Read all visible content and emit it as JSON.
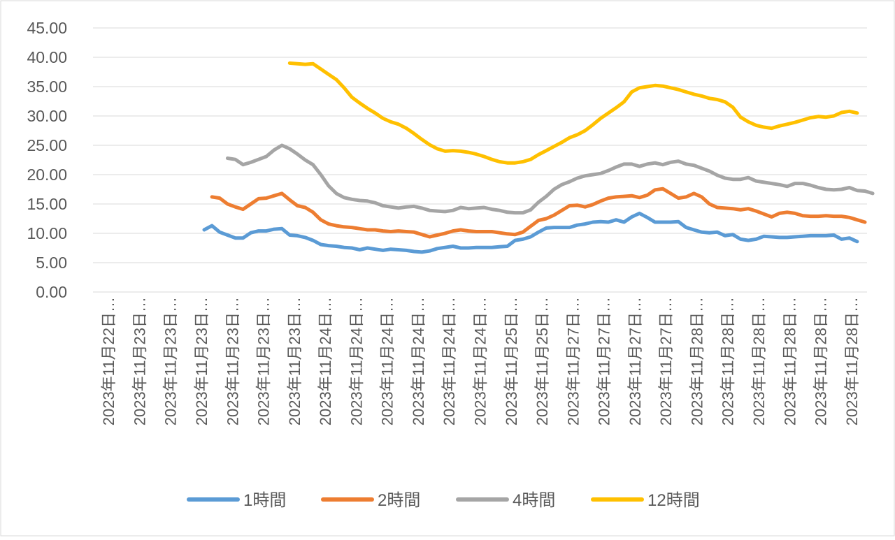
{
  "chart_data": {
    "type": "line",
    "title": "",
    "xlabel": "",
    "ylabel": "",
    "ylim": [
      0,
      45
    ],
    "yticks": [
      "0.00",
      "5.00",
      "10.00",
      "15.00",
      "20.00",
      "25.00",
      "30.00",
      "35.00",
      "40.00",
      "45.00"
    ],
    "x_tick_labels": [
      "2023年11月22日…",
      "2023年11月23日…",
      "2023年11月23日…",
      "2023年11月23日…",
      "2023年11月23日…",
      "2023年11月23日…",
      "2023年11月23日…",
      "2023年11月24日…",
      "2023年11月24日…",
      "2023年11月24日…",
      "2023年11月24日…",
      "2023年11月24日…",
      "2023年11月24日…",
      "2023年11月25日…",
      "2023年11月25日…",
      "2023年11月27日…",
      "2023年11月27日…",
      "2023年11月27日…",
      "2023年11月27日…",
      "2023年11月28日…",
      "2023年11月28日…",
      "2023年11月28日…",
      "2023年11月28日…",
      "2023年11月28日…",
      "2023年11月28日…"
    ],
    "grid": true,
    "legend_position": "bottom",
    "series": [
      {
        "name": "1時間",
        "color": "#5B9BD5",
        "start_index": 0,
        "values": [
          10.6,
          11.3,
          10.2,
          9.7,
          9.2,
          9.2,
          10.1,
          10.4,
          10.4,
          10.7,
          10.8,
          9.7,
          9.6,
          9.3,
          8.8,
          8.1,
          7.9,
          7.8,
          7.6,
          7.5,
          7.2,
          7.5,
          7.3,
          7.1,
          7.3,
          7.2,
          7.1,
          6.9,
          6.8,
          7.0,
          7.4,
          7.6,
          7.8,
          7.5,
          7.5,
          7.6,
          7.6,
          7.6,
          7.7,
          7.8,
          8.8,
          9.0,
          9.4,
          10.2,
          10.9,
          11.0,
          11.0,
          11.0,
          11.4,
          11.6,
          11.9,
          12.0,
          11.9,
          12.3,
          11.9,
          12.8,
          13.4,
          12.7,
          11.9,
          11.9,
          11.9,
          12.0,
          11.0,
          10.6,
          10.2,
          10.1,
          10.2,
          9.6,
          9.8,
          9.0,
          8.8,
          9.0,
          9.5,
          9.4,
          9.3,
          9.3,
          9.4,
          9.5,
          9.6,
          9.6,
          9.6,
          9.7,
          9.0,
          9.2,
          8.6
        ]
      },
      {
        "name": "2時間",
        "color": "#ED7D31",
        "start_index": 1,
        "values": [
          16.2,
          16.0,
          15.0,
          14.5,
          14.1,
          15.0,
          15.9,
          16.0,
          16.4,
          16.8,
          15.7,
          14.7,
          14.4,
          13.6,
          12.3,
          11.6,
          11.3,
          11.1,
          11.0,
          10.8,
          10.6,
          10.6,
          10.4,
          10.3,
          10.4,
          10.3,
          10.2,
          9.8,
          9.4,
          9.7,
          10.0,
          10.4,
          10.6,
          10.4,
          10.3,
          10.3,
          10.3,
          10.1,
          9.9,
          9.8,
          10.2,
          11.2,
          12.2,
          12.5,
          13.1,
          13.9,
          14.7,
          14.8,
          14.5,
          14.9,
          15.5,
          16.0,
          16.2,
          16.3,
          16.4,
          16.1,
          16.5,
          17.4,
          17.6,
          16.8,
          16.0,
          16.2,
          16.8,
          16.2,
          15.0,
          14.4,
          14.3,
          14.2,
          14.0,
          14.2,
          13.8,
          13.3,
          12.8,
          13.4,
          13.6,
          13.4,
          13.0,
          12.9,
          12.9,
          13.0,
          12.9,
          12.9,
          12.7,
          12.3,
          11.9
        ]
      },
      {
        "name": "4時間",
        "color": "#A5A5A5",
        "start_index": 3,
        "values": [
          22.8,
          22.6,
          21.7,
          22.1,
          22.6,
          23.1,
          24.2,
          25.0,
          24.4,
          23.5,
          22.5,
          21.7,
          20.0,
          18.1,
          16.8,
          16.1,
          15.8,
          15.6,
          15.5,
          15.2,
          14.7,
          14.5,
          14.3,
          14.5,
          14.6,
          14.3,
          13.9,
          13.8,
          13.7,
          13.9,
          14.4,
          14.2,
          14.3,
          14.4,
          14.1,
          13.9,
          13.6,
          13.5,
          13.5,
          14.0,
          15.3,
          16.3,
          17.5,
          18.3,
          18.8,
          19.4,
          19.8,
          20.0,
          20.2,
          20.7,
          21.3,
          21.8,
          21.8,
          21.4,
          21.8,
          22.0,
          21.7,
          22.1,
          22.3,
          21.8,
          21.6,
          21.1,
          20.6,
          19.9,
          19.4,
          19.2,
          19.2,
          19.5,
          18.9,
          18.7,
          18.5,
          18.3,
          18.0,
          18.5,
          18.5,
          18.2,
          17.8,
          17.5,
          17.4,
          17.5,
          17.8,
          17.3,
          17.2,
          16.8
        ]
      },
      {
        "name": "12時間",
        "color": "#FFC000",
        "start_index": 11,
        "values": [
          39.0,
          38.9,
          38.8,
          38.9,
          38.0,
          37.1,
          36.2,
          34.8,
          33.2,
          32.2,
          31.3,
          30.5,
          29.6,
          29.0,
          28.6,
          27.9,
          27.0,
          26.0,
          25.1,
          24.4,
          24.0,
          24.1,
          24.0,
          23.8,
          23.5,
          23.1,
          22.6,
          22.2,
          22.0,
          22.0,
          22.2,
          22.6,
          23.4,
          24.1,
          24.8,
          25.5,
          26.3,
          26.8,
          27.5,
          28.5,
          29.6,
          30.5,
          31.4,
          32.4,
          34.1,
          34.8,
          35.0,
          35.2,
          35.1,
          34.8,
          34.5,
          34.1,
          33.7,
          33.4,
          33.0,
          32.8,
          32.4,
          31.5,
          29.8,
          29.0,
          28.4,
          28.1,
          27.9,
          28.3,
          28.6,
          28.9,
          29.3,
          29.7,
          29.9,
          29.8,
          30.0,
          30.6,
          30.8,
          30.5
        ]
      }
    ]
  }
}
